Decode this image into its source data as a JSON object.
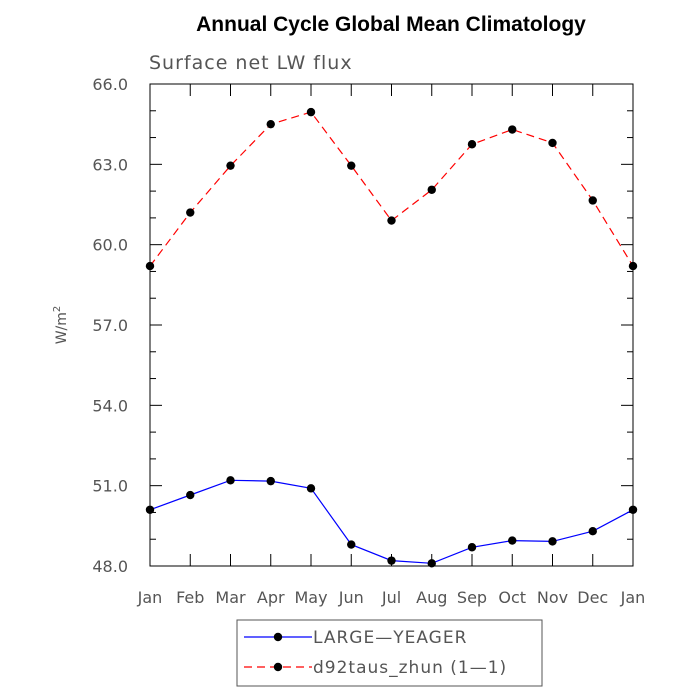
{
  "chart_data": {
    "type": "line",
    "title": "Annual Cycle Global Mean Climatology",
    "subtitle": "Surface net LW flux",
    "ylabel_main": "W/m",
    "ylabel_sup": "2",
    "categories": [
      "Jan",
      "Feb",
      "Mar",
      "Apr",
      "May",
      "Jun",
      "Jul",
      "Aug",
      "Sep",
      "Oct",
      "Nov",
      "Dec",
      "Jan"
    ],
    "ylim": [
      48.0,
      66.0
    ],
    "yticks": [
      48.0,
      51.0,
      54.0,
      57.0,
      60.0,
      63.0,
      66.0
    ],
    "ytick_labels": [
      "48.0",
      "51.0",
      "54.0",
      "57.0",
      "60.0",
      "63.0",
      "66.0"
    ],
    "yminor_step": 1.0,
    "grid": false,
    "legend_position": "bottom-center",
    "series": [
      {
        "name": "LARGE—YEAGER",
        "color": "#0000ff",
        "dash": "solid",
        "values": [
          50.1,
          50.65,
          51.2,
          51.17,
          50.9,
          48.8,
          48.2,
          48.1,
          48.7,
          48.95,
          48.92,
          49.3,
          50.1
        ]
      },
      {
        "name": "d92taus_zhun (1—1)",
        "color": "#ff0000",
        "dash": "dashed",
        "values": [
          59.2,
          61.2,
          62.95,
          64.5,
          64.95,
          62.95,
          60.9,
          62.05,
          63.75,
          64.3,
          63.8,
          61.65,
          59.2
        ]
      }
    ]
  }
}
